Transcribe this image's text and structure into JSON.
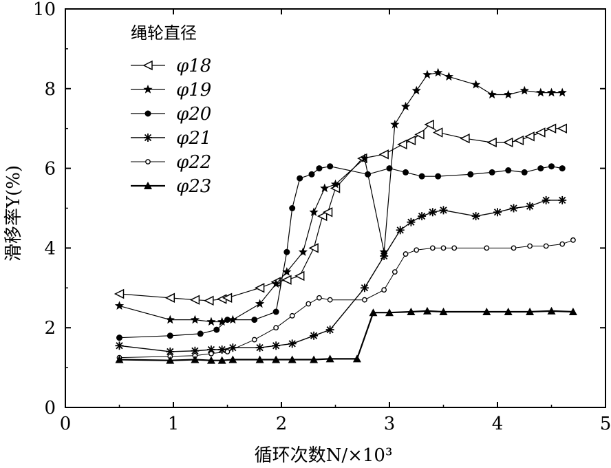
{
  "chart_data": {
    "type": "line",
    "title": "",
    "xlabel": "循环次数N/×10³",
    "ylabel": "滑移率Y(%)",
    "xlim": [
      0,
      5
    ],
    "ylim": [
      0,
      10
    ],
    "xticks": [
      "0",
      "1",
      "2",
      "3",
      "4",
      "5"
    ],
    "yticks": [
      "0",
      "2",
      "4",
      "6",
      "8",
      "10"
    ],
    "grid": false,
    "legend": {
      "title": "绳轮直径",
      "position": "top-left"
    },
    "series": [
      {
        "name": "φ18",
        "marker": "triangle-left",
        "x": [
          0.5,
          0.97,
          1.2,
          1.33,
          1.45,
          1.5,
          1.8,
          1.95,
          2.05,
          2.17,
          2.3,
          2.38,
          2.43,
          2.5,
          2.75,
          2.95,
          3.12,
          3.2,
          3.28,
          3.37,
          3.45,
          3.7,
          3.95,
          4.1,
          4.2,
          4.3,
          4.4,
          4.5,
          4.6
        ],
        "y": [
          2.85,
          2.75,
          2.7,
          2.68,
          2.72,
          2.75,
          3.0,
          3.15,
          3.2,
          3.3,
          4.0,
          4.8,
          4.9,
          5.5,
          6.25,
          6.35,
          6.6,
          6.7,
          6.85,
          7.1,
          6.9,
          6.75,
          6.65,
          6.65,
          6.7,
          6.8,
          6.9,
          7.0,
          7.0
        ]
      },
      {
        "name": "φ19",
        "marker": "star",
        "x": [
          0.5,
          0.97,
          1.2,
          1.35,
          1.45,
          1.55,
          1.8,
          1.95,
          2.05,
          2.2,
          2.3,
          2.4,
          2.5,
          2.77,
          2.95,
          3.05,
          3.15,
          3.25,
          3.35,
          3.45,
          3.55,
          3.8,
          3.95,
          4.1,
          4.25,
          4.4,
          4.5,
          4.6
        ],
        "y": [
          2.55,
          2.2,
          2.2,
          2.15,
          2.15,
          2.2,
          2.6,
          3.1,
          3.4,
          3.9,
          4.9,
          5.5,
          5.6,
          6.25,
          3.9,
          7.1,
          7.55,
          7.95,
          8.35,
          8.4,
          8.3,
          8.1,
          7.85,
          7.85,
          7.95,
          7.9,
          7.9,
          7.9
        ]
      },
      {
        "name": "φ20",
        "marker": "circle",
        "x": [
          0.5,
          0.97,
          1.25,
          1.4,
          1.5,
          1.75,
          1.95,
          2.05,
          2.1,
          2.17,
          2.28,
          2.35,
          2.45,
          2.8,
          3.0,
          3.15,
          3.3,
          3.45,
          3.75,
          3.95,
          4.1,
          4.25,
          4.4,
          4.5,
          4.6
        ],
        "y": [
          1.75,
          1.8,
          1.85,
          1.95,
          2.2,
          2.2,
          2.4,
          3.9,
          5.0,
          5.75,
          5.85,
          6.0,
          6.05,
          5.85,
          6.0,
          5.9,
          5.8,
          5.8,
          5.85,
          5.9,
          5.95,
          5.9,
          6.0,
          6.05,
          6.0
        ]
      },
      {
        "name": "φ21",
        "marker": "asterisk",
        "x": [
          0.5,
          0.97,
          1.2,
          1.35,
          1.45,
          1.55,
          1.8,
          1.95,
          2.1,
          2.3,
          2.45,
          2.77,
          2.95,
          3.1,
          3.2,
          3.3,
          3.4,
          3.5,
          3.8,
          4.0,
          4.15,
          4.3,
          4.45,
          4.6
        ],
        "y": [
          1.55,
          1.4,
          1.42,
          1.45,
          1.45,
          1.5,
          1.5,
          1.55,
          1.6,
          1.8,
          1.95,
          3.0,
          3.8,
          4.45,
          4.65,
          4.8,
          4.9,
          4.95,
          4.8,
          4.9,
          5.0,
          5.05,
          5.2,
          5.2
        ]
      },
      {
        "name": "φ22",
        "marker": "small-circle",
        "x": [
          0.5,
          0.97,
          1.2,
          1.35,
          1.5,
          1.75,
          1.95,
          2.1,
          2.25,
          2.35,
          2.45,
          2.77,
          2.95,
          3.05,
          3.15,
          3.25,
          3.4,
          3.5,
          3.6,
          3.9,
          4.15,
          4.3,
          4.45,
          4.6,
          4.7
        ],
        "y": [
          1.25,
          1.28,
          1.3,
          1.35,
          1.4,
          1.7,
          2.0,
          2.3,
          2.6,
          2.75,
          2.7,
          2.7,
          2.95,
          3.4,
          3.85,
          3.95,
          4.0,
          4.0,
          4.0,
          4.0,
          4.0,
          4.05,
          4.05,
          4.1,
          4.2
        ]
      },
      {
        "name": "φ23",
        "marker": "triangle-up",
        "x": [
          0.5,
          0.97,
          1.2,
          1.35,
          1.45,
          1.55,
          1.8,
          1.95,
          2.1,
          2.3,
          2.45,
          2.7,
          2.85,
          3.0,
          3.2,
          3.35,
          3.5,
          3.9,
          4.1,
          4.3,
          4.5,
          4.7
        ],
        "y": [
          1.2,
          1.18,
          1.2,
          1.18,
          1.18,
          1.2,
          1.2,
          1.2,
          1.2,
          1.2,
          1.22,
          1.22,
          2.38,
          2.38,
          2.4,
          2.42,
          2.4,
          2.4,
          2.4,
          2.4,
          2.42,
          2.4
        ]
      }
    ]
  }
}
